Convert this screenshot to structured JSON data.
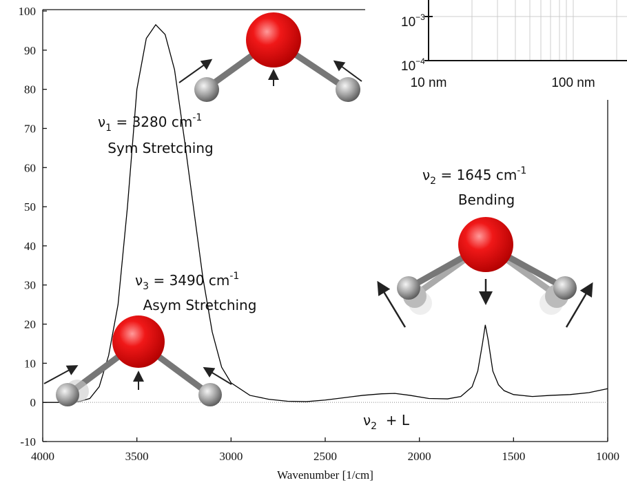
{
  "chart_data": {
    "type": "line",
    "xlabel": "Wavenumber [1/cm]",
    "x": [
      4000,
      3900,
      3800,
      3750,
      3700,
      3650,
      3600,
      3550,
      3500,
      3450,
      3400,
      3350,
      3300,
      3250,
      3200,
      3150,
      3100,
      3050,
      3000,
      2900,
      2800,
      2700,
      2600,
      2500,
      2400,
      2300,
      2200,
      2130,
      2050,
      1950,
      1850,
      1780,
      1720,
      1690,
      1665,
      1650,
      1635,
      1610,
      1580,
      1550,
      1500,
      1400,
      1300,
      1200,
      1100,
      1000
    ],
    "values": [
      0,
      0,
      0.3,
      1,
      4,
      12,
      25,
      50,
      80,
      93,
      96.5,
      94,
      85,
      68,
      50,
      32,
      18,
      9,
      5,
      1.8,
      0.8,
      0.3,
      0.2,
      0.6,
      1.2,
      1.8,
      2.2,
      2.3,
      1.8,
      1,
      0.9,
      1.5,
      4,
      8,
      15,
      19.8,
      16,
      8,
      4.5,
      3,
      2,
      1.5,
      1.8,
      2,
      2.5,
      3.5
    ],
    "color": "#000000",
    "xlim": [
      4000,
      1000
    ],
    "xticks": [
      4000,
      3500,
      3000,
      2500,
      2000,
      1500,
      1000
    ],
    "ylim": [
      -10,
      100
    ],
    "yticks": [
      -10,
      0,
      10,
      20,
      30,
      40,
      50,
      60,
      70,
      80,
      90,
      100
    ],
    "annotations": [
      {
        "symbol": "ν",
        "sub": "1",
        "text": " = 3280 cm",
        "sup": "-1",
        "line2": "Sym Stretching"
      },
      {
        "symbol": "ν",
        "sub": "3",
        "text": " = 3490 cm",
        "sup": "-1",
        "line2": "Asym Stretching"
      },
      {
        "symbol": "ν",
        "sub": "2",
        "text": " = 1645 cm",
        "sup": "-1",
        "line2": "Bending"
      },
      {
        "symbol": "ν",
        "sub": "2",
        "text": "  + L"
      }
    ],
    "inset": {
      "yticks": [
        {
          "base": "10",
          "exp": "−3"
        },
        {
          "base": "10",
          "exp": "−4"
        }
      ],
      "xticks": [
        "10 nm",
        "100 nm"
      ]
    }
  }
}
